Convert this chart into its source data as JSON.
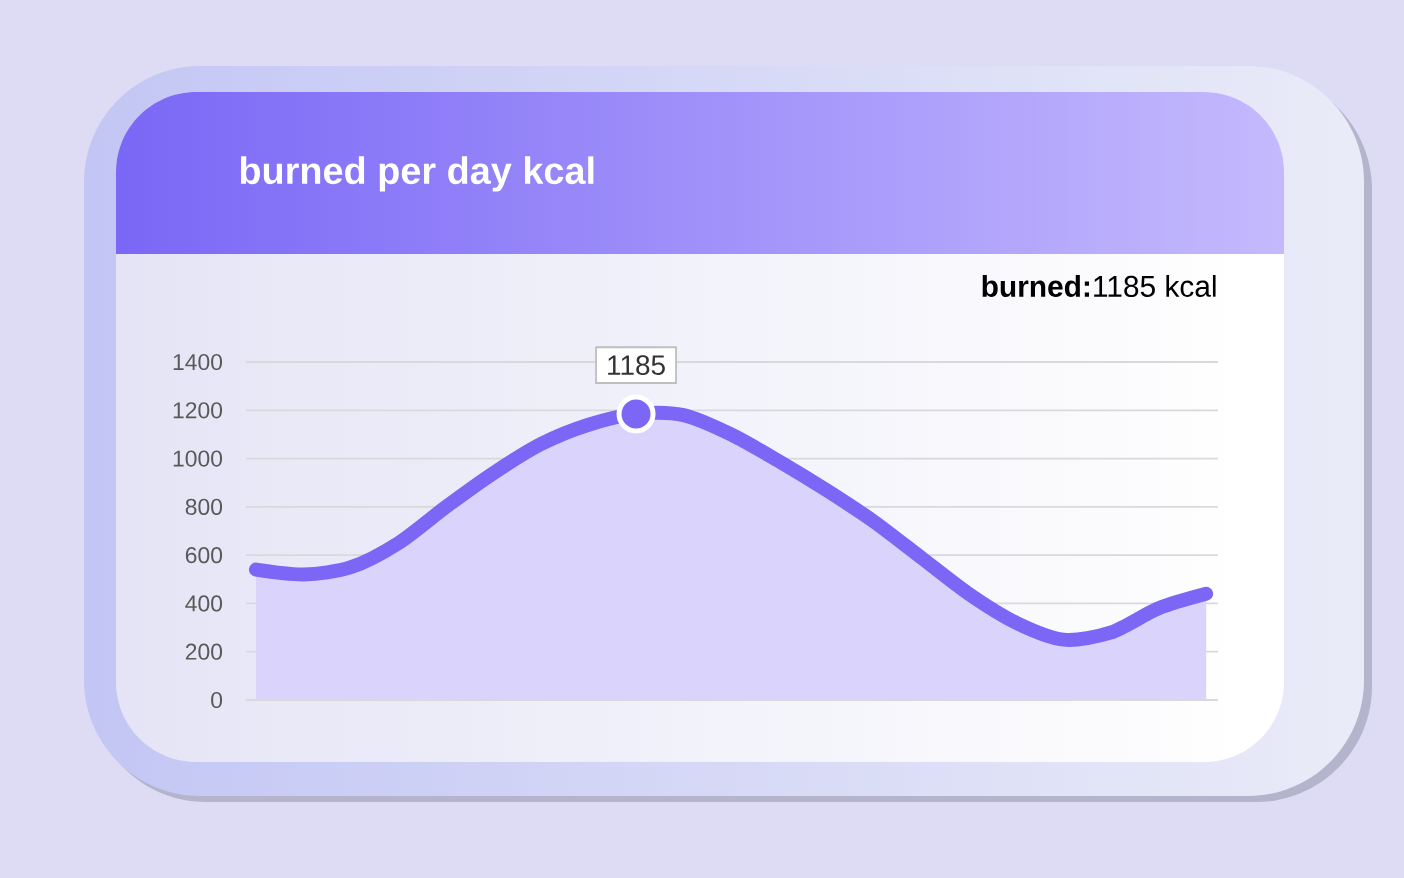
{
  "chart_data": {
    "type": "area",
    "title": "burned per day kcal",
    "annotations": [
      "**burned:**1185 kcal"
    ],
    "categories": [
      null,
      null,
      null,
      null,
      null,
      null,
      null,
      null,
      null,
      null,
      null,
      null,
      null,
      null,
      null,
      null,
      null,
      null,
      null,
      null,
      null
    ],
    "series": [
      {
        "color": "#7b66f6",
        "values": [
          540,
          520,
          550,
          650,
          800,
          940,
          1060,
          1140,
          1185,
          1180,
          1100,
          990,
          870,
          740,
          590,
          440,
          320,
          250,
          280,
          380,
          440
        ],
        "value_labels": [
          null,
          null,
          null,
          null,
          null,
          null,
          null,
          null,
          "1185",
          null,
          null,
          null,
          null,
          null,
          null,
          null,
          null,
          null,
          null,
          null,
          null
        ]
      },
      {
        "type": "scatter",
        "color": "#7b66f6",
        "marker": "circle",
        "values": [
          null,
          null,
          null,
          null,
          null,
          null,
          null,
          null,
          1185,
          null,
          null,
          null,
          null,
          null,
          null,
          null,
          null,
          null,
          null,
          null,
          null
        ]
      }
    ],
    "ylim": [
      0,
      1400
    ],
    "yticks": [
      0,
      200,
      400,
      600,
      800,
      1000,
      1200,
      1400
    ],
    "grid": "y",
    "tick_labels": "y"
  }
}
